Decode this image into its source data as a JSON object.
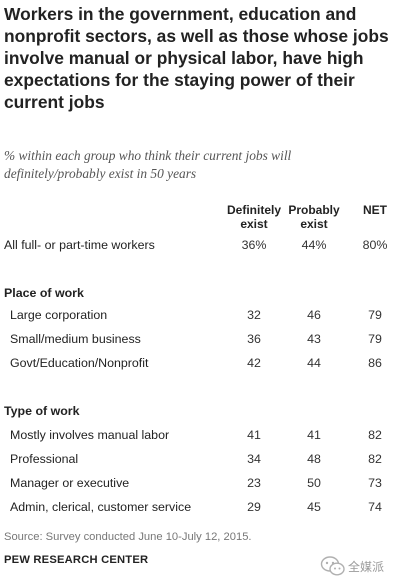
{
  "chart_data": {
    "type": "table",
    "title": "Workers in the government, education and nonprofit sectors, as well as those whose jobs involve manual or physical labor, have high expectations for the staying power of their current jobs",
    "subtitle_line1": "% within each group who think their current jobs will",
    "subtitle_line2": "definitely/probably exist in 50 years",
    "columns": [
      {
        "line1": "Definitely",
        "line2": "exist"
      },
      {
        "line1": "Probably",
        "line2": "exist"
      },
      {
        "line1": "NET",
        "line2": ""
      }
    ],
    "overall": {
      "label": "All full- or part-time workers",
      "values": [
        "36%",
        "44%",
        "80%"
      ]
    },
    "sections": [
      {
        "heading": "Place of work",
        "rows": [
          {
            "label": "Large corporation",
            "values": [
              "32",
              "46",
              "79"
            ]
          },
          {
            "label": "Small/medium business",
            "values": [
              "36",
              "43",
              "79"
            ]
          },
          {
            "label": "Govt/Education/Nonprofit",
            "values": [
              "42",
              "44",
              "86"
            ]
          }
        ]
      },
      {
        "heading": "Type of work",
        "rows": [
          {
            "label": "Mostly involves manual labor",
            "values": [
              "41",
              "41",
              "82"
            ]
          },
          {
            "label": "Professional",
            "values": [
              "34",
              "48",
              "82"
            ]
          },
          {
            "label": "Manager or executive",
            "values": [
              "23",
              "50",
              "73"
            ]
          },
          {
            "label": "Admin, clerical, customer service",
            "values": [
              "29",
              "45",
              "74"
            ]
          }
        ]
      }
    ],
    "source": "Source: Survey conducted June 10-July 12, 2015.",
    "organization": "PEW RESEARCH CENTER",
    "watermark_text": "全媒派"
  }
}
